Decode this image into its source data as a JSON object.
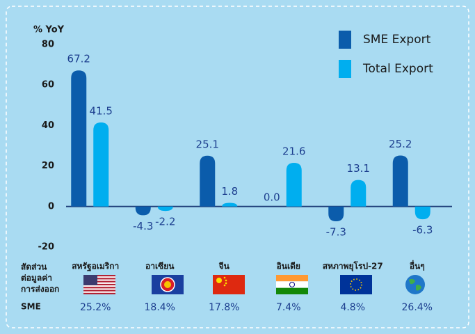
{
  "chart_data": {
    "type": "bar",
    "ylabel": "% YoY",
    "categories": [
      "สหรัฐอเมริกา",
      "อาเซียน",
      "จีน",
      "อินเดีย",
      "สหภาพยุโรป-27",
      "อื่นๆ"
    ],
    "series": [
      {
        "name": "SME Export",
        "color": "#0b5cab",
        "values": [
          67.2,
          -4.3,
          25.1,
          0.0,
          -7.3,
          25.2
        ],
        "value_labels": [
          "67.2",
          "-4.3",
          "25.1",
          "0.0",
          "-7.3",
          "25.2"
        ]
      },
      {
        "name": "Total Export",
        "color": "#00aeef",
        "values": [
          41.5,
          -2.2,
          1.8,
          21.6,
          13.1,
          -6.3
        ]
      }
    ],
    "ylim": [
      -20,
      80
    ],
    "yticks": [
      -20,
      0,
      20,
      40,
      60,
      80
    ],
    "legend": "top-right",
    "share_label": [
      "สัดส่วน",
      "ต่อมูลค่า",
      "การส่งออก",
      "SME"
    ],
    "shares": [
      "25.2%",
      "18.4%",
      "17.8%",
      "7.4%",
      "4.8%",
      "26.4%"
    ]
  }
}
